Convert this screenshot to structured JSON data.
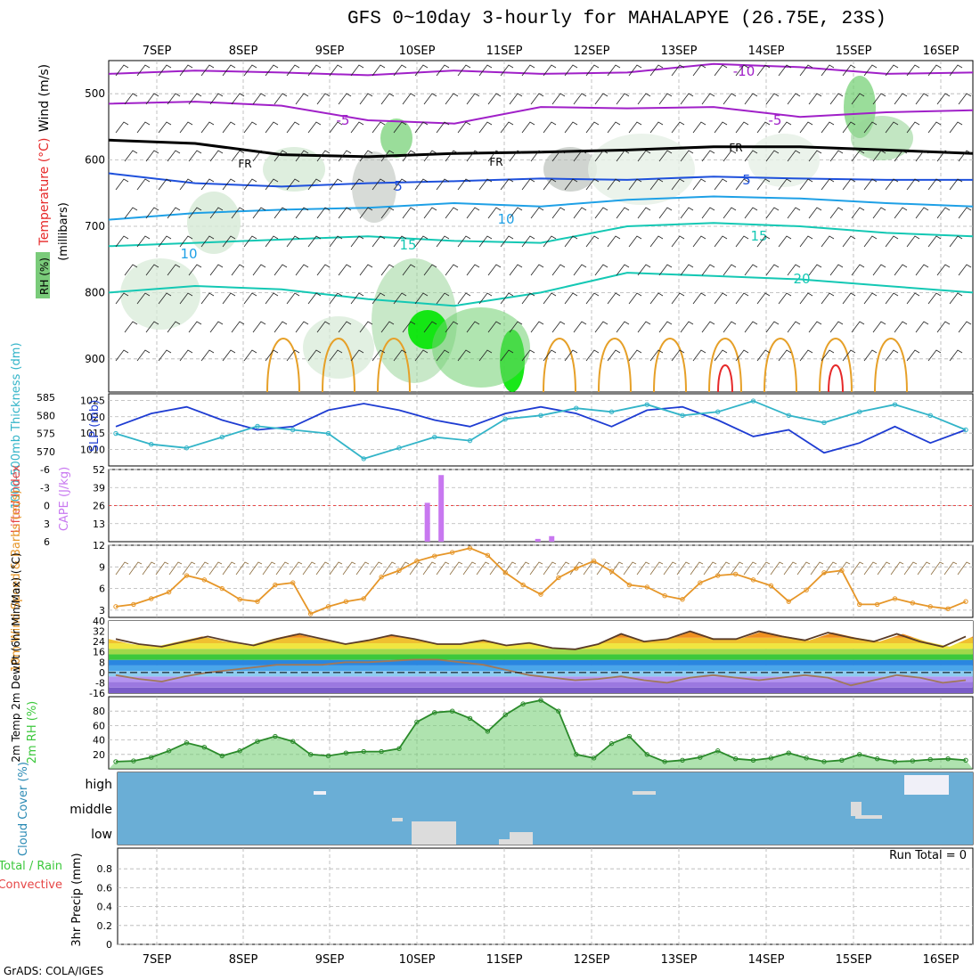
{
  "title": "GFS 0~10day 3-hourly for MAHALAPYE (26.75E, 23S)",
  "credit": "GrADS: COLA/IGES",
  "colors": {
    "grid": "#b4b4b4",
    "rh_green": "#3cc83c",
    "purple_temp": "#a020c8",
    "blue_temp": "#1e50dc",
    "cyan_temp": "#1ea0e6",
    "teal_temp": "#14c8b4",
    "orange_temp": "#e6a028",
    "red_temp": "#e62828",
    "slp": "#1e3cd2",
    "thickness": "#32b4c8",
    "cape": "#c878f0",
    "lifted": "#e64646",
    "wind": "#e69628",
    "cloud_bg": "#6aaed6",
    "cloud_fill": "#dcdcdc"
  },
  "chart_data": [
    {
      "panel": "upper-air",
      "type": "contour",
      "ylabel_wind": "Wind (m/s)",
      "ylabel_temp": "Temperature (°C)",
      "ylabel_mb": "(millibars)",
      "ylabel_rh": "RH (%)",
      "x_ticks": [
        "7SEP",
        "8SEP",
        "9SEP",
        "10SEP",
        "11SEP",
        "12SEP",
        "13SEP",
        "14SEP",
        "15SEP",
        "16SEP"
      ],
      "y_ticks": [
        500,
        600,
        700,
        800,
        900
      ],
      "ylim": [
        950,
        450
      ],
      "freezing_label": "FR",
      "temp_labels": [
        "-10",
        "-5",
        "-5",
        "5",
        "5",
        "10",
        "10",
        "15",
        "15",
        "20"
      ],
      "isotherms": [
        {
          "label": "-10",
          "level": [
            470,
            465,
            468,
            472,
            465,
            470,
            468,
            455,
            460,
            470,
            468
          ]
        },
        {
          "label": "-5",
          "level": [
            515,
            512,
            518,
            540,
            545,
            520,
            522,
            520,
            535,
            528,
            525
          ]
        },
        {
          "label": "FR",
          "level": [
            570,
            575,
            592,
            595,
            590,
            588,
            585,
            580,
            580,
            585,
            590
          ]
        },
        {
          "label": "5",
          "level": [
            620,
            635,
            640,
            635,
            632,
            628,
            630,
            625,
            628,
            630,
            630
          ]
        },
        {
          "label": "10",
          "level": [
            690,
            680,
            675,
            672,
            665,
            670,
            660,
            655,
            658,
            665,
            670
          ]
        },
        {
          "label": "15",
          "level": [
            730,
            725,
            720,
            715,
            722,
            725,
            700,
            695,
            700,
            710,
            715
          ]
        },
        {
          "label": "20",
          "level": [
            800,
            790,
            795,
            810,
            820,
            800,
            770,
            775,
            780,
            790,
            800
          ]
        }
      ]
    },
    {
      "panel": "slp-thickness",
      "type": "line",
      "ylabel_left": "1000-500mb Thickness (dm)",
      "ylabel_right": "SLP (mb)",
      "left_ticks": [
        570,
        575,
        580,
        585
      ],
      "right_ticks": [
        1010,
        1015,
        1020,
        1025
      ],
      "series": [
        {
          "name": "SLP (mb)",
          "values": [
            1017,
            1021,
            1023,
            1019,
            1016,
            1017,
            1022,
            1024,
            1022,
            1019,
            1017,
            1021,
            1023,
            1021,
            1017,
            1022,
            1023,
            1019,
            1014,
            1016,
            1009,
            1012,
            1017,
            1012,
            1016
          ]
        },
        {
          "name": "1000-500mb Thickness (dm)",
          "values": [
            575,
            572,
            571,
            574,
            577,
            576,
            575,
            568,
            571,
            574,
            573,
            579,
            580,
            582,
            581,
            583,
            580,
            581,
            584,
            580,
            578,
            581,
            583,
            580,
            576
          ]
        }
      ]
    },
    {
      "panel": "cape-li",
      "type": "bar",
      "ylabel_left": "Lifted Index",
      "ylabel_right": "CAPE (J/kg)",
      "left_ticks": [
        "6",
        "3",
        "0",
        "-3",
        "-6"
      ],
      "right_ticks": [
        13,
        26,
        39,
        52
      ],
      "cape_values": [
        0,
        0,
        0,
        0,
        0,
        0,
        0,
        0,
        0,
        0,
        0,
        0,
        0,
        0,
        0,
        0,
        0,
        0,
        0,
        0,
        0,
        0,
        0,
        0,
        0,
        0,
        0,
        0,
        0,
        0,
        0,
        0,
        0,
        0,
        0,
        0,
        0,
        0,
        28,
        0,
        48,
        0,
        0,
        0,
        0,
        0,
        0,
        0,
        0,
        0,
        0,
        0,
        0,
        0,
        2,
        0,
        4
      ]
    },
    {
      "panel": "wind10m",
      "type": "line",
      "ylabel": "10m Wind Speed & Barbs (m/s)",
      "y_ticks": [
        3,
        6,
        9,
        12
      ],
      "ylim": [
        2,
        12
      ],
      "values": [
        3.5,
        3.8,
        4.6,
        5.5,
        7.8,
        7.2,
        6.0,
        4.5,
        4.2,
        6.5,
        6.8,
        2.5,
        3.5,
        4.2,
        4.6,
        7.6,
        8.5,
        9.8,
        10.5,
        11.0,
        11.6,
        10.6,
        8.2,
        6.5,
        5.2,
        7.5,
        8.8,
        9.8,
        8.4,
        6.5,
        6.2,
        5.0,
        4.5,
        6.8,
        7.8,
        8.0,
        7.2,
        6.4,
        4.2,
        5.8,
        8.2,
        8.5,
        3.8,
        3.8,
        4.6,
        4.0,
        3.5,
        3.2,
        4.2
      ]
    },
    {
      "panel": "temp2m",
      "type": "area",
      "ylabel": "2m Temp 2m DewPt (6hr Min/Max) (°C)",
      "y_ticks": [
        -16,
        -8,
        0,
        8,
        16,
        24,
        32,
        40
      ],
      "ylim": [
        -16,
        40
      ],
      "temp": [
        26,
        22,
        20,
        24,
        28,
        24,
        21,
        26,
        30,
        26,
        22,
        25,
        29,
        26,
        22,
        22,
        25,
        21,
        23,
        19,
        18,
        22,
        30,
        24,
        26,
        32,
        26,
        26,
        32,
        28,
        25,
        31,
        27,
        24,
        30,
        24,
        20,
        28
      ],
      "dewpt": [
        -2,
        -5,
        -7,
        -3,
        0,
        2,
        4,
        6,
        6,
        6,
        8,
        8,
        9,
        10,
        10,
        8,
        6,
        2,
        -2,
        -4,
        -6,
        -5,
        -3,
        -6,
        -8,
        -4,
        -2,
        -4,
        -6,
        -4,
        -2,
        -4,
        -10,
        -6,
        -2,
        -4,
        -8,
        -6
      ]
    },
    {
      "panel": "rh2m",
      "type": "area",
      "ylabel": "2m RH (%)",
      "y_ticks": [
        20,
        40,
        60,
        80
      ],
      "ylim": [
        0,
        100
      ],
      "values": [
        10,
        11,
        16,
        25,
        36,
        30,
        18,
        25,
        38,
        45,
        38,
        20,
        18,
        22,
        24,
        24,
        28,
        65,
        78,
        80,
        70,
        52,
        75,
        90,
        95,
        80,
        20,
        15,
        35,
        45,
        20,
        10,
        12,
        16,
        25,
        14,
        12,
        15,
        22,
        15,
        10,
        12,
        20,
        14,
        10,
        11,
        13,
        14,
        12
      ]
    },
    {
      "panel": "cloud",
      "type": "heatmap",
      "ylabel": "Cloud Cover (%)",
      "levels": [
        "high",
        "middle",
        "low"
      ]
    },
    {
      "panel": "precip",
      "type": "bar",
      "ylabel": "3hr Precip (mm)",
      "legend_total": "Total / Rain",
      "legend_conv": "Convective",
      "run_total": "Run Total = 0",
      "y_ticks": [
        "0",
        "0.2",
        "0.4",
        "0.6",
        "0.8"
      ],
      "ylim": [
        0,
        1
      ]
    }
  ]
}
